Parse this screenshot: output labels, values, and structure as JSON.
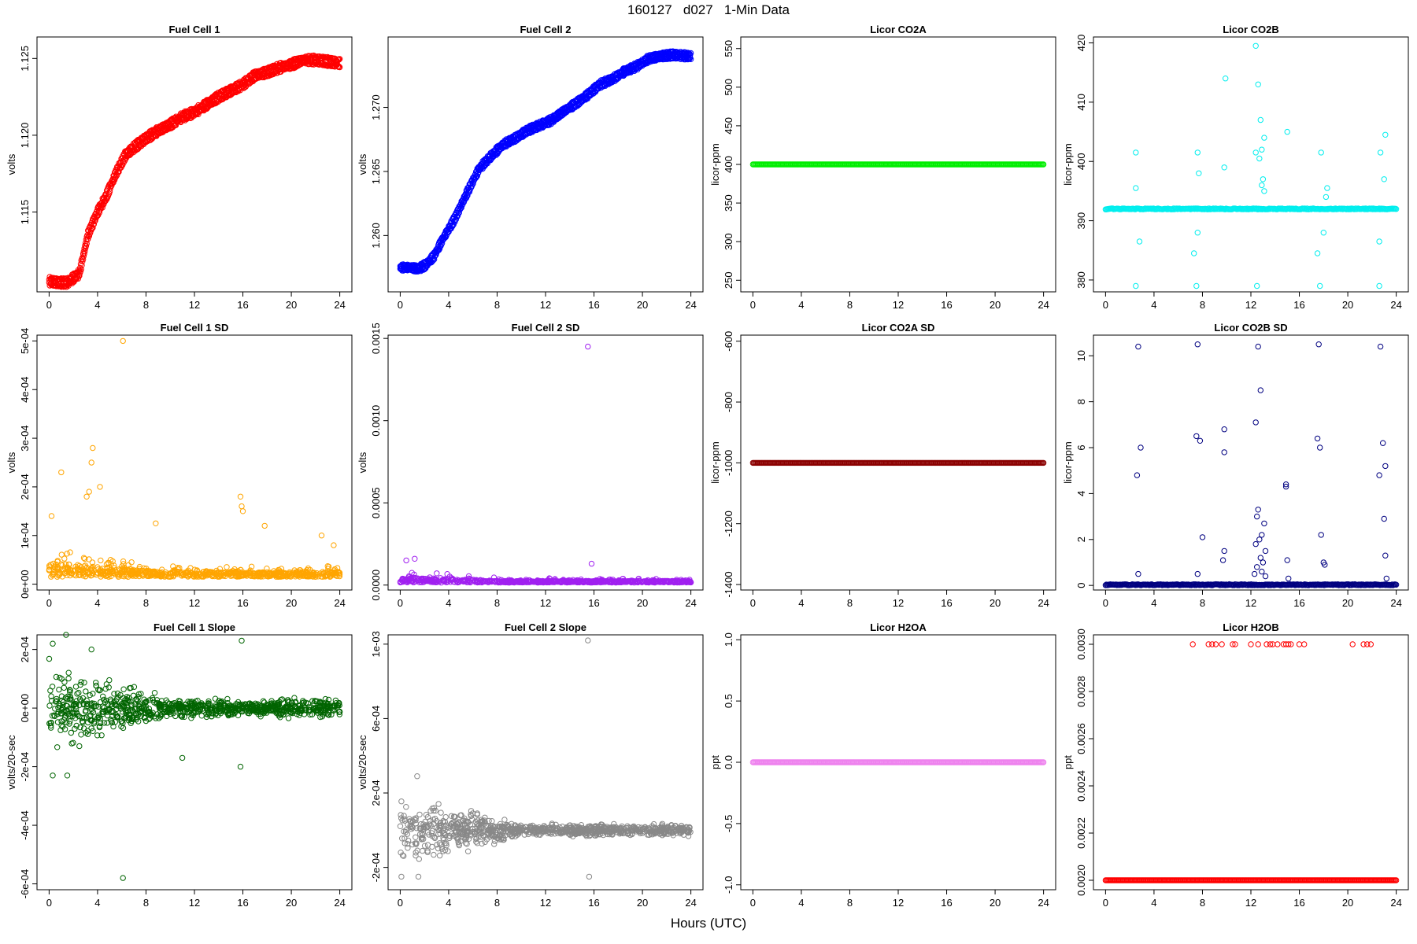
{
  "title": "160127   d027   1-Min Data",
  "xlabel": "Hours (UTC)",
  "chart_data": [
    {
      "type": "scatter",
      "title": "Fuel Cell 1",
      "ylabel": "volts",
      "color": "#ff0000",
      "ylim": [
        1.1098,
        1.1264
      ],
      "yticks": [
        {
          "v": 1.115,
          "t": "1.115"
        },
        {
          "v": 1.12,
          "t": "1.120"
        },
        {
          "v": 1.125,
          "t": "1.125"
        }
      ],
      "kind": "double",
      "gap": 0.0004,
      "series": [
        [
          0,
          1.1105
        ],
        [
          0.8,
          1.1104
        ],
        [
          1.5,
          1.1104
        ],
        [
          2,
          1.1107
        ],
        [
          2.5,
          1.111
        ],
        [
          3.2,
          1.1135
        ],
        [
          4,
          1.115
        ],
        [
          4.7,
          1.116
        ],
        [
          5.5,
          1.1175
        ],
        [
          6.3,
          1.1187
        ],
        [
          7,
          1.1192
        ],
        [
          8,
          1.1198
        ],
        [
          9,
          1.1203
        ],
        [
          10,
          1.1207
        ],
        [
          11,
          1.1212
        ],
        [
          12,
          1.1215
        ],
        [
          13,
          1.122
        ],
        [
          14,
          1.1225
        ],
        [
          15,
          1.1229
        ],
        [
          16,
          1.1233
        ],
        [
          17,
          1.1239
        ],
        [
          18,
          1.1241
        ],
        [
          19,
          1.1244
        ],
        [
          20,
          1.1246
        ],
        [
          21,
          1.1249
        ],
        [
          22,
          1.1249
        ],
        [
          23,
          1.1248
        ],
        [
          23.9,
          1.1247
        ]
      ]
    },
    {
      "type": "scatter",
      "title": "Fuel Cell 2",
      "ylabel": "volts",
      "color": "#0000ff",
      "ylim": [
        1.2556,
        1.2755
      ],
      "yticks": [
        {
          "v": 1.26,
          "t": "1.260"
        },
        {
          "v": 1.265,
          "t": "1.265"
        },
        {
          "v": 1.27,
          "t": "1.270"
        }
      ],
      "kind": "double",
      "gap": 0.0004,
      "series": [
        [
          0,
          1.2575
        ],
        [
          0.8,
          1.2575
        ],
        [
          1.5,
          1.2574
        ],
        [
          2.1,
          1.2577
        ],
        [
          2.8,
          1.2584
        ],
        [
          3.5,
          1.2597
        ],
        [
          4.5,
          1.2613
        ],
        [
          5.5,
          1.2633
        ],
        [
          6.5,
          1.2652
        ],
        [
          7.5,
          1.2662
        ],
        [
          8.5,
          1.2671
        ],
        [
          9.5,
          1.2676
        ],
        [
          10.5,
          1.2682
        ],
        [
          11.5,
          1.2686
        ],
        [
          12.5,
          1.269
        ],
        [
          13.5,
          1.2697
        ],
        [
          14.5,
          1.2703
        ],
        [
          15.5,
          1.271
        ],
        [
          16.5,
          1.2718
        ],
        [
          17.5,
          1.2722
        ],
        [
          18.5,
          1.2728
        ],
        [
          19.5,
          1.2732
        ],
        [
          20.5,
          1.2738
        ],
        [
          21.5,
          1.274
        ],
        [
          22.5,
          1.2741
        ],
        [
          23.9,
          1.274
        ]
      ]
    },
    {
      "type": "scatter",
      "title": "Licor CO2A",
      "ylabel": "licor-ppm",
      "color": "#00ee00",
      "ylim": [
        235,
        565
      ],
      "yticks": [
        {
          "v": 250,
          "t": "250"
        },
        {
          "v": 300,
          "t": "300"
        },
        {
          "v": 350,
          "t": "350"
        },
        {
          "v": 400,
          "t": "400"
        },
        {
          "v": 450,
          "t": "450"
        },
        {
          "v": 500,
          "t": "500"
        },
        {
          "v": 550,
          "t": "550"
        }
      ],
      "kind": "flat",
      "value": 400
    },
    {
      "type": "scatter",
      "title": "Licor CO2B",
      "ylabel": "licor-ppm",
      "color": "#00eeee",
      "ylim": [
        378,
        421
      ],
      "yticks": [
        {
          "v": 380,
          "t": "380"
        },
        {
          "v": 390,
          "t": "390"
        },
        {
          "v": 400,
          "t": "400"
        },
        {
          "v": 410,
          "t": "410"
        },
        {
          "v": 420,
          "t": "420"
        }
      ],
      "kind": "baseline",
      "base": 392,
      "outliers": [
        [
          2.5,
          379
        ],
        [
          7.5,
          379
        ],
        [
          12.5,
          379
        ],
        [
          17.7,
          379
        ],
        [
          22.6,
          379
        ],
        [
          2.5,
          401.5
        ],
        [
          7.6,
          401.5
        ],
        [
          12.4,
          401.5
        ],
        [
          17.8,
          401.5
        ],
        [
          22.7,
          401.5
        ],
        [
          2.5,
          395.5
        ],
        [
          7.7,
          398
        ],
        [
          12.4,
          419.5
        ],
        [
          12.6,
          413
        ],
        [
          9.9,
          414
        ],
        [
          12.8,
          407
        ],
        [
          13.1,
          404
        ],
        [
          15,
          405
        ],
        [
          23.1,
          404.5
        ],
        [
          23,
          397
        ],
        [
          2.8,
          386.5
        ],
        [
          7.3,
          384.5
        ],
        [
          7.6,
          388
        ],
        [
          17.5,
          384.5
        ],
        [
          18,
          388
        ],
        [
          22.6,
          386.5
        ],
        [
          13,
          397
        ],
        [
          12.9,
          396
        ],
        [
          13.1,
          395
        ],
        [
          18.2,
          394
        ],
        [
          18.3,
          395.5
        ],
        [
          9.8,
          399
        ],
        [
          12.7,
          400.5
        ],
        [
          12.9,
          402
        ]
      ]
    },
    {
      "type": "scatter",
      "title": "Fuel Cell 1 SD",
      "ylabel": "volts",
      "color": "#ffa500",
      "ylim": [
        -1.2e-05,
        0.000512
      ],
      "yticks": [
        {
          "v": 0,
          "t": "0e+00"
        },
        {
          "v": 0.0001,
          "t": "1e-04"
        },
        {
          "v": 0.0002,
          "t": "2e-04"
        },
        {
          "v": 0.0003,
          "t": "3e-04"
        },
        {
          "v": 0.0004,
          "t": "4e-04"
        },
        {
          "v": 0.0005,
          "t": "5e-04"
        }
      ],
      "kind": "noise",
      "seed": 11,
      "base": 3e-05,
      "spread": 3e-05,
      "tail": 4e-05,
      "outliers": [
        [
          6.1,
          0.0005
        ],
        [
          3.6,
          0.00028
        ],
        [
          3.5,
          0.00025
        ],
        [
          1,
          0.00023
        ],
        [
          4.2,
          0.0002
        ],
        [
          3.3,
          0.00019
        ],
        [
          3.1,
          0.00018
        ],
        [
          0.2,
          0.00014
        ],
        [
          15.8,
          0.00018
        ],
        [
          15.9,
          0.00016
        ],
        [
          16,
          0.00015
        ],
        [
          8.8,
          0.000125
        ],
        [
          17.8,
          0.00012
        ],
        [
          22.5,
          0.0001
        ],
        [
          23.5,
          8e-05
        ]
      ]
    },
    {
      "type": "scatter",
      "title": "Fuel Cell 2 SD",
      "ylabel": "volts",
      "color": "#a020f0",
      "ylim": [
        -3e-05,
        0.00152
      ],
      "yticks": [
        {
          "v": 0,
          "t": "0.0000"
        },
        {
          "v": 0.0005,
          "t": "0.0005"
        },
        {
          "v": 0.001,
          "t": "0.0010"
        },
        {
          "v": 0.0015,
          "t": "0.0015"
        }
      ],
      "kind": "noise",
      "seed": 23,
      "base": 3e-05,
      "spread": 3e-05,
      "tail": 5e-05,
      "outliers": [
        [
          15.5,
          0.00145
        ],
        [
          15.8,
          0.00013
        ],
        [
          1.2,
          0.00016
        ],
        [
          0.5,
          0.00015
        ]
      ]
    },
    {
      "type": "scatter",
      "title": "Licor CO2A SD",
      "ylabel": "licor-ppm",
      "color": "#8b0000",
      "ylim": [
        -1418,
        -580
      ],
      "yticks": [
        {
          "v": -1400,
          "t": "-1400"
        },
        {
          "v": -1200,
          "t": "-1200"
        },
        {
          "v": -1000,
          "t": "-1000"
        },
        {
          "v": -800,
          "t": "-800"
        },
        {
          "v": -600,
          "t": "-600"
        }
      ],
      "kind": "flat",
      "value": -1000
    },
    {
      "type": "scatter",
      "title": "Licor CO2B SD",
      "ylabel": "licor-ppm",
      "color": "#000080",
      "ylim": [
        -0.2,
        10.9
      ],
      "yticks": [
        {
          "v": 0,
          "t": "0"
        },
        {
          "v": 2,
          "t": "2"
        },
        {
          "v": 4,
          "t": "4"
        },
        {
          "v": 6,
          "t": "6"
        },
        {
          "v": 8,
          "t": "8"
        },
        {
          "v": 10,
          "t": "10"
        }
      ],
      "kind": "baseline",
      "base": 0.03,
      "outliers": [
        [
          2.7,
          10.4
        ],
        [
          7.6,
          10.5
        ],
        [
          12.6,
          10.4
        ],
        [
          17.6,
          10.5
        ],
        [
          22.7,
          10.4
        ],
        [
          12.8,
          8.5
        ],
        [
          12.4,
          7.1
        ],
        [
          7.5,
          6.5
        ],
        [
          7.8,
          6.3
        ],
        [
          9.8,
          6.8
        ],
        [
          9.8,
          5.8
        ],
        [
          17.5,
          6.4
        ],
        [
          17.7,
          6
        ],
        [
          22.9,
          6.2
        ],
        [
          23.1,
          5.2
        ],
        [
          2.9,
          6
        ],
        [
          2.6,
          4.8
        ],
        [
          22.6,
          4.8
        ],
        [
          14.9,
          4.4
        ],
        [
          14.9,
          4.3
        ],
        [
          12.6,
          3.3
        ],
        [
          12.5,
          3
        ],
        [
          13.1,
          2.7
        ],
        [
          12.9,
          2.2
        ],
        [
          12.7,
          2
        ],
        [
          12.4,
          1.8
        ],
        [
          13.2,
          1.5
        ],
        [
          12.8,
          1.2
        ],
        [
          13,
          1
        ],
        [
          12.5,
          0.8
        ],
        [
          12.9,
          0.6
        ],
        [
          13.2,
          0.4
        ],
        [
          8,
          2.1
        ],
        [
          9.8,
          1.5
        ],
        [
          9.7,
          1.1
        ],
        [
          15,
          1.1
        ],
        [
          17.8,
          2.2
        ],
        [
          18.1,
          0.9
        ],
        [
          18,
          1
        ],
        [
          23,
          2.9
        ],
        [
          23.1,
          1.3
        ],
        [
          23.2,
          0.3
        ],
        [
          2.7,
          0.5
        ],
        [
          7.6,
          0.5
        ],
        [
          15.1,
          0.3
        ],
        [
          12.3,
          0.5
        ]
      ]
    },
    {
      "type": "scatter",
      "title": "Fuel Cell 1 Slope",
      "ylabel": "volts/20-sec",
      "color": "#006400",
      "ylim": [
        -0.00062,
        0.00025
      ],
      "yticks": [
        {
          "v": -0.0006,
          "t": "-6e-04"
        },
        {
          "v": -0.0004,
          "t": "-4e-04"
        },
        {
          "v": -0.0002,
          "t": "-2e-04"
        },
        {
          "v": 0,
          "t": "0e+00"
        },
        {
          "v": 0.0002,
          "t": "2e-04"
        }
      ],
      "kind": "symnoise",
      "seed": 37,
      "spread0": 0.0001,
      "spread1": 2e-05,
      "outliers": [
        [
          6.1,
          -0.00058
        ],
        [
          1.4,
          0.00025
        ],
        [
          0.3,
          0.00022
        ],
        [
          15.9,
          0.00023
        ],
        [
          3.5,
          0.0002
        ],
        [
          15.8,
          -0.0002
        ],
        [
          0.3,
          -0.00023
        ],
        [
          1.5,
          -0.00023
        ],
        [
          11,
          -0.00017
        ],
        [
          2.5,
          -0.00013
        ]
      ]
    },
    {
      "type": "scatter",
      "title": "Fuel Cell 2 Slope",
      "ylabel": "volts/20-sec",
      "color": "#888888",
      "ylim": [
        -0.00032,
        0.00105
      ],
      "yticks": [
        {
          "v": -0.0002,
          "t": "-2e-04"
        },
        {
          "v": 0.0002,
          "t": "2e-04"
        },
        {
          "v": 0.0006,
          "t": "6e-04"
        },
        {
          "v": 0.001,
          "t": "1e-03"
        }
      ],
      "kind": "symnoise",
      "seed": 51,
      "spread0": 0.00012,
      "spread1": 2e-05,
      "outliers": [
        [
          15.5,
          0.00102
        ],
        [
          15.6,
          -0.00025
        ],
        [
          1.4,
          0.00029
        ],
        [
          0.1,
          -0.00025
        ],
        [
          1.5,
          -0.00025
        ]
      ]
    },
    {
      "type": "scatter",
      "title": "Licor H2OA",
      "ylabel": "ppt",
      "color": "#ee82ee",
      "ylim": [
        -1.04,
        1.04
      ],
      "yticks": [
        {
          "v": -1,
          "t": "-1.0"
        },
        {
          "v": -0.5,
          "t": "-0.5"
        },
        {
          "v": 0,
          "t": "0.0"
        },
        {
          "v": 0.5,
          "t": "0.5"
        },
        {
          "v": 1,
          "t": "1.0"
        }
      ],
      "kind": "flat",
      "value": 0
    },
    {
      "type": "scatter",
      "title": "Licor H2OB",
      "ylabel": "ppt",
      "color": "#ff0000",
      "ylim": [
        0.00196,
        0.00304
      ],
      "yticks": [
        {
          "v": 0.002,
          "t": "0.0020"
        },
        {
          "v": 0.0022,
          "t": "0.0022"
        },
        {
          "v": 0.0024,
          "t": "0.0024"
        },
        {
          "v": 0.0026,
          "t": "0.0026"
        },
        {
          "v": 0.0028,
          "t": "0.0028"
        },
        {
          "v": 0.003,
          "t": "0.0030"
        }
      ],
      "kind": "flat",
      "value": 0.002,
      "outliers": [
        [
          7.2,
          0.003
        ],
        [
          8.5,
          0.003
        ],
        [
          8.8,
          0.003
        ],
        [
          9.1,
          0.003
        ],
        [
          9.6,
          0.003
        ],
        [
          10.5,
          0.003
        ],
        [
          10.7,
          0.003
        ],
        [
          12,
          0.003
        ],
        [
          12.6,
          0.003
        ],
        [
          13.3,
          0.003
        ],
        [
          13.6,
          0.003
        ],
        [
          13.8,
          0.003
        ],
        [
          14.2,
          0.003
        ],
        [
          14.7,
          0.003
        ],
        [
          14.9,
          0.003
        ],
        [
          15.1,
          0.003
        ],
        [
          15.3,
          0.003
        ],
        [
          16,
          0.003
        ],
        [
          16.4,
          0.003
        ],
        [
          20.4,
          0.003
        ],
        [
          21.3,
          0.003
        ],
        [
          21.6,
          0.003
        ],
        [
          21.9,
          0.003
        ]
      ]
    }
  ]
}
